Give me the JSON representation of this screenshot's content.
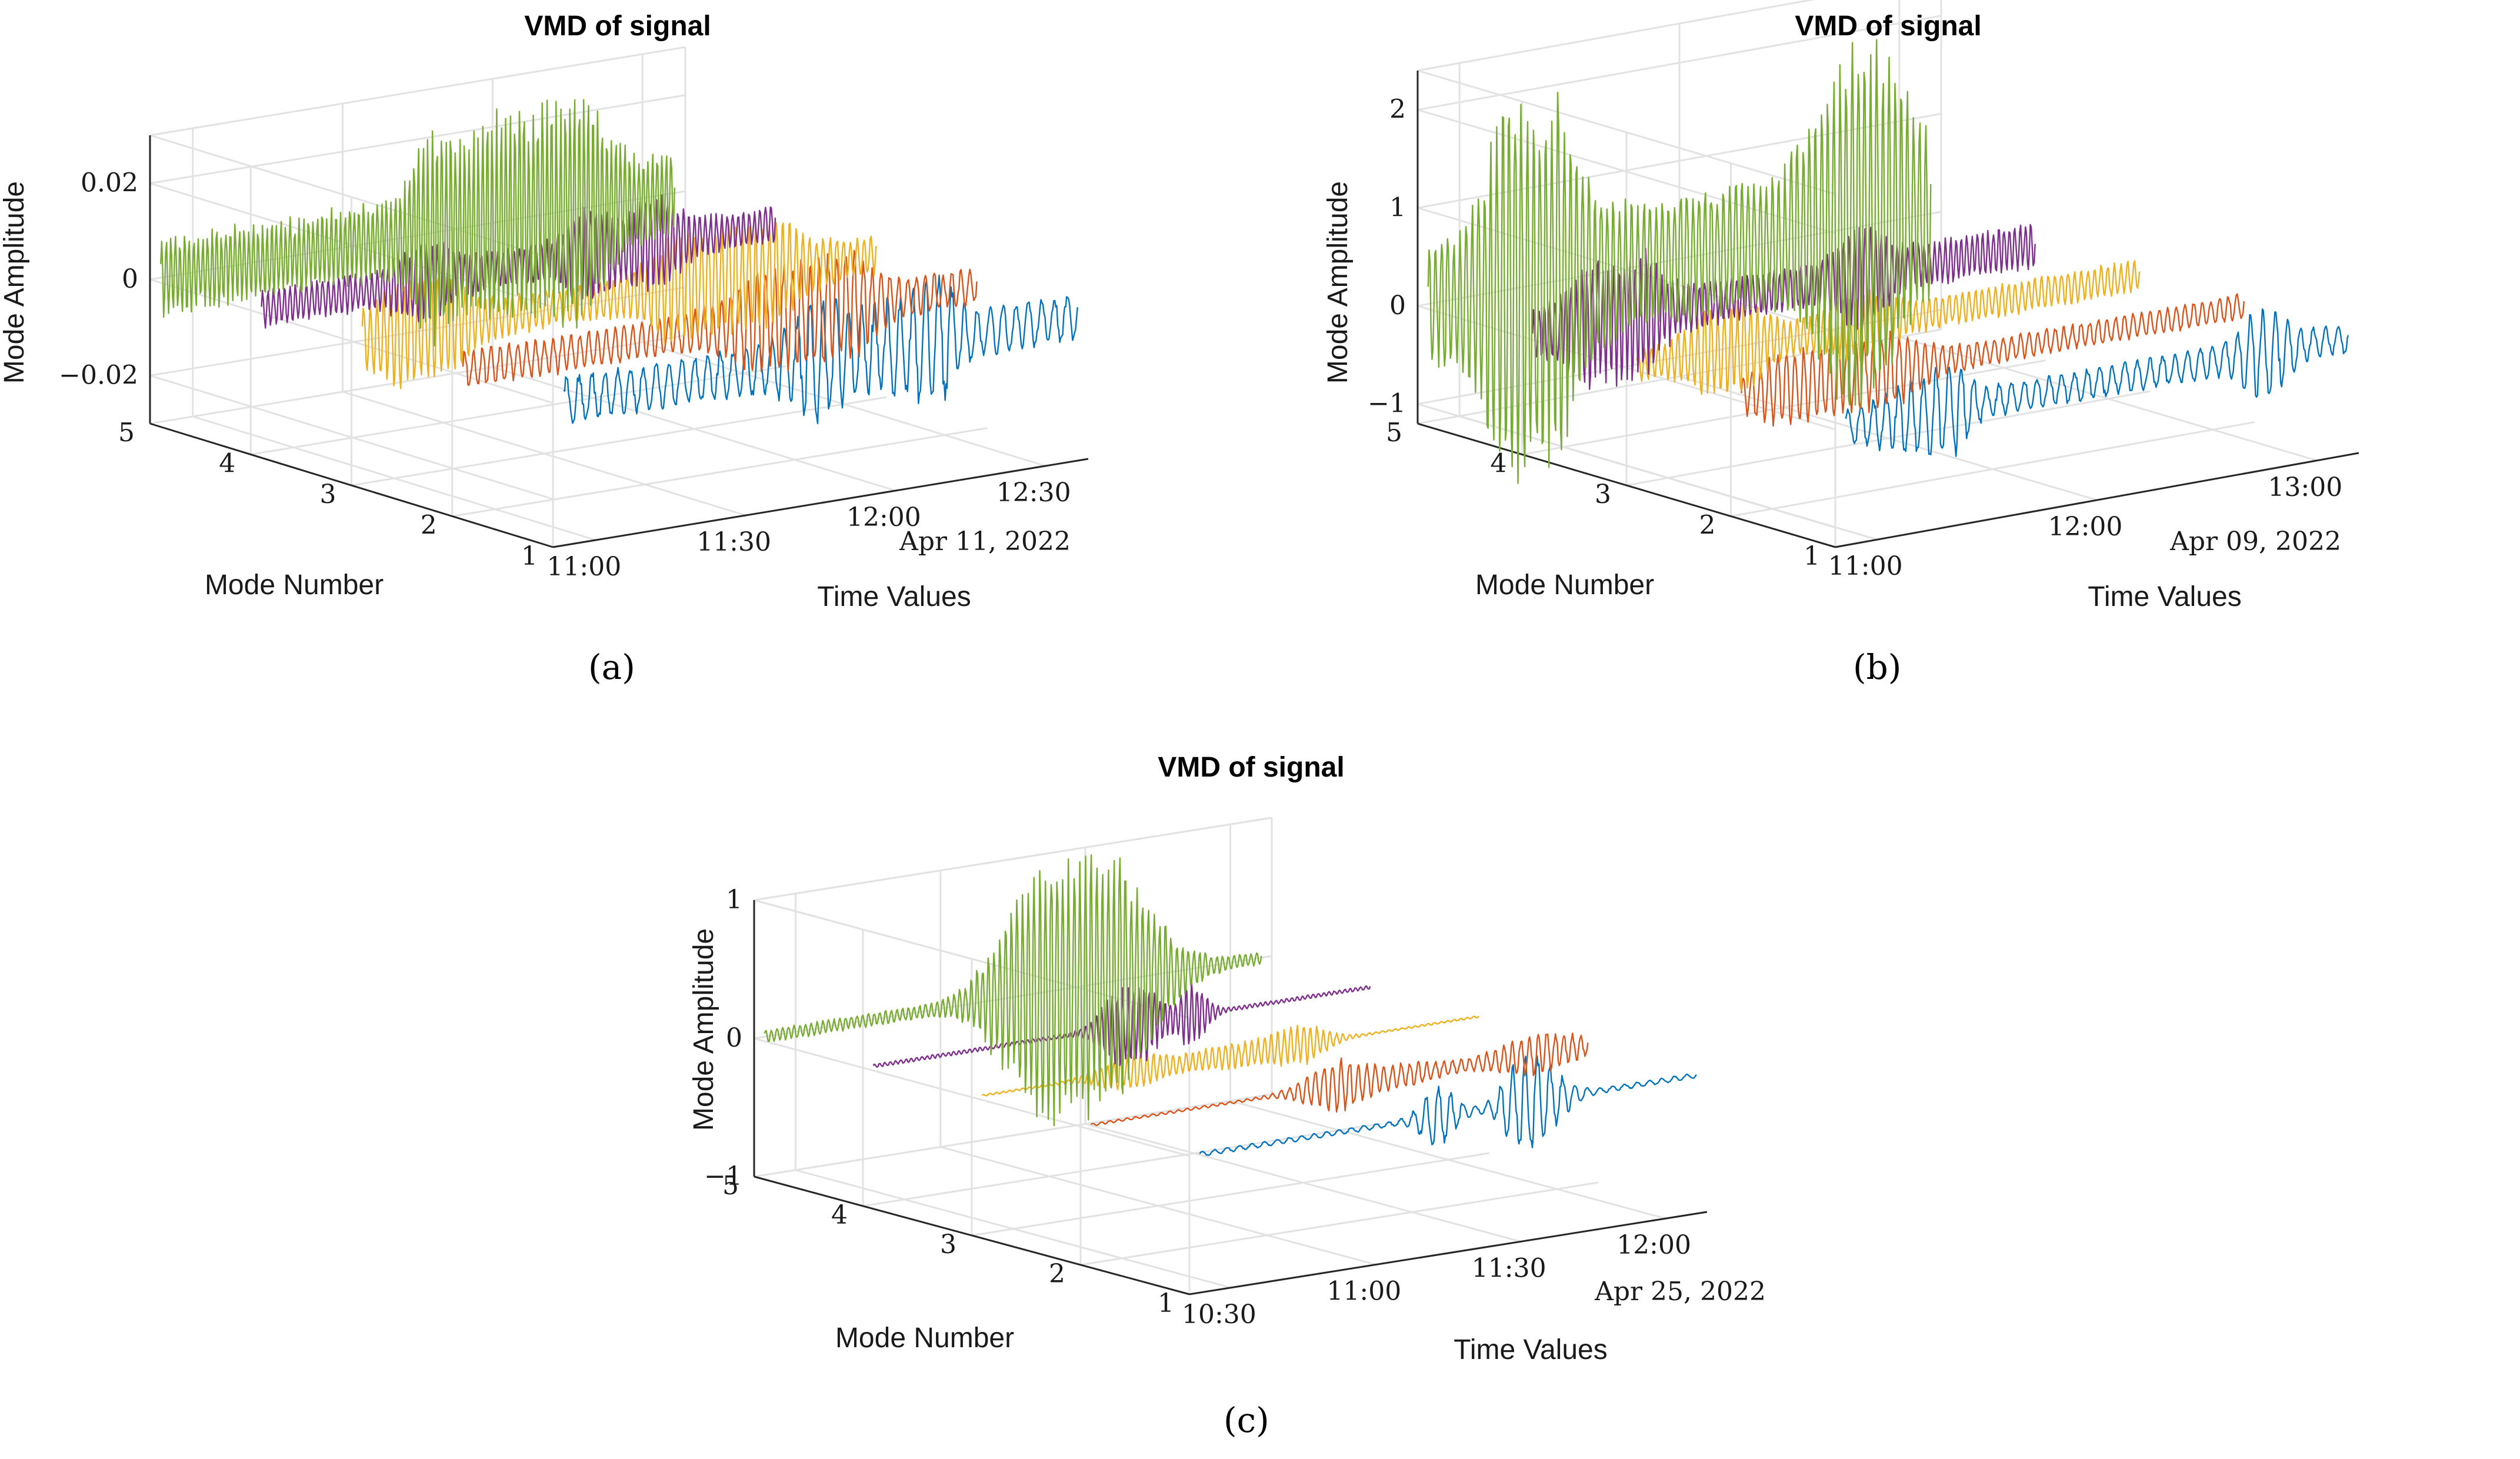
{
  "figure": {
    "captions": [
      "(a)",
      "(b)",
      "(c)"
    ]
  },
  "chart_data": [
    {
      "type": "line",
      "panel": "a",
      "title": "VMD of signal",
      "xlabel": "Time Values",
      "ylabel": "Mode Number",
      "zlabel": "Mode Amplitude",
      "date_label": "Apr 11, 2022",
      "x_ticks": [
        "11:00",
        "11:30",
        "12:00",
        "12:30"
      ],
      "y_ticks": [
        "1",
        "2",
        "3",
        "4",
        "5"
      ],
      "z_ticks": [
        "−0.02",
        "0",
        "0.02"
      ],
      "zlim": [
        -0.03,
        0.03
      ],
      "series": [
        {
          "name": "Mode 1",
          "mode": 1,
          "color": "#0072BD",
          "peak_amplitude": 0.015
        },
        {
          "name": "Mode 2",
          "mode": 2,
          "color": "#D95319",
          "peak_amplitude": 0.012
        },
        {
          "name": "Mode 3",
          "mode": 3,
          "color": "#EDB120",
          "peak_amplitude": 0.012
        },
        {
          "name": "Mode 4",
          "mode": 4,
          "color": "#7E2F8E",
          "peak_amplitude": 0.012
        },
        {
          "name": "Mode 5",
          "mode": 5,
          "color": "#77AC30",
          "peak_amplitude": 0.025
        }
      ]
    },
    {
      "type": "line",
      "panel": "b",
      "title": "VMD of signal",
      "xlabel": "Time Values",
      "ylabel": "Mode Number",
      "zlabel": "Mode Amplitude",
      "date_label": "Apr 09, 2022",
      "x_ticks": [
        "11:00",
        "12:00",
        "13:00"
      ],
      "y_ticks": [
        "1",
        "2",
        "3",
        "4",
        "5"
      ],
      "z_ticks": [
        "−1",
        "0",
        "1",
        "2"
      ],
      "zlim": [
        -1.2,
        2.4
      ],
      "series": [
        {
          "name": "Mode 1",
          "mode": 1,
          "color": "#0072BD",
          "peak_amplitude": 0.5
        },
        {
          "name": "Mode 2",
          "mode": 2,
          "color": "#D95319",
          "peak_amplitude": 0.4
        },
        {
          "name": "Mode 3",
          "mode": 3,
          "color": "#EDB120",
          "peak_amplitude": 0.5
        },
        {
          "name": "Mode 4",
          "mode": 4,
          "color": "#7E2F8E",
          "peak_amplitude": 0.7
        },
        {
          "name": "Mode 5",
          "mode": 5,
          "color": "#77AC30",
          "peak_amplitude": 2.0
        }
      ]
    },
    {
      "type": "line",
      "panel": "c",
      "title": "VMD of signal",
      "xlabel": "Time Values",
      "ylabel": "Mode Number",
      "zlabel": "Mode Amplitude",
      "date_label": "Apr 25, 2022",
      "x_ticks": [
        "10:30",
        "11:00",
        "11:30",
        "12:00"
      ],
      "y_ticks": [
        "1",
        "2",
        "3",
        "4",
        "5"
      ],
      "z_ticks": [
        "−1",
        "0",
        "1"
      ],
      "zlim": [
        -1,
        1
      ],
      "series": [
        {
          "name": "Mode 1",
          "mode": 1,
          "color": "#0072BD",
          "peak_amplitude": 0.4
        },
        {
          "name": "Mode 2",
          "mode": 2,
          "color": "#D95319",
          "peak_amplitude": 0.2
        },
        {
          "name": "Mode 3",
          "mode": 3,
          "color": "#EDB120",
          "peak_amplitude": 0.15
        },
        {
          "name": "Mode 4",
          "mode": 4,
          "color": "#7E2F8E",
          "peak_amplitude": 0.3
        },
        {
          "name": "Mode 5",
          "mode": 5,
          "color": "#77AC30",
          "peak_amplitude": 1.0
        }
      ]
    }
  ]
}
